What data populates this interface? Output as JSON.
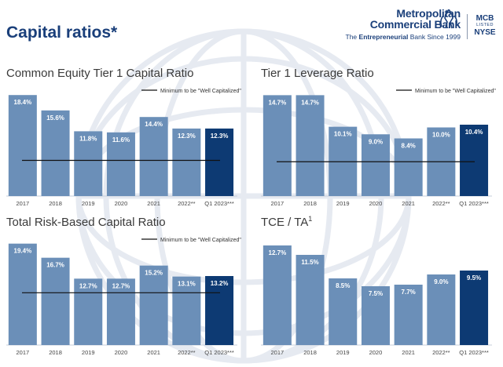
{
  "page": {
    "title": "Capital ratios*"
  },
  "logo": {
    "name_line1": "Metropolitan",
    "name_line2": "Commercial Bank",
    "tagline_pre": "The ",
    "tagline_bold": "Entrepreneurial",
    "tagline_post": " Bank Since 1999",
    "ticker": "MCB",
    "listed": "LISTED",
    "exchange": "NYSE"
  },
  "colors": {
    "bar": "#6b8fb8",
    "bar_highlight": "#0d3a73",
    "title": "#1a3f7a",
    "threshold_line": "#111111"
  },
  "chart_data": [
    {
      "type": "bar",
      "title": "Common Equity Tier 1 Capital Ratio",
      "title_sup": "",
      "categories": [
        "2017",
        "2018",
        "2019",
        "2020",
        "2021",
        "2022**",
        "Q1 2023***"
      ],
      "values": [
        18.4,
        15.6,
        11.8,
        11.6,
        14.4,
        12.3,
        12.3
      ],
      "labels": [
        "18.4%",
        "15.6%",
        "11.8%",
        "11.6%",
        "14.4%",
        "12.3%",
        "12.3%"
      ],
      "highlight_index": 6,
      "threshold": 6.5,
      "legend": "Minimum to be \"Well Capitalized\"",
      "ylim": [
        0,
        20
      ]
    },
    {
      "type": "bar",
      "title": "Tier 1 Leverage Ratio",
      "title_sup": "",
      "categories": [
        "2017",
        "2018",
        "2019",
        "2020",
        "2021",
        "2022**",
        "Q1 2023***"
      ],
      "values": [
        14.7,
        14.7,
        10.1,
        9.0,
        8.4,
        10.0,
        10.4
      ],
      "labels": [
        "14.7%",
        "14.7%",
        "10.1%",
        "9.0%",
        "8.4%",
        "10.0%",
        "10.4%"
      ],
      "highlight_index": 6,
      "threshold": 5.0,
      "legend": "Minimum to be \"Well Capitalized\"",
      "ylim": [
        0,
        16
      ]
    },
    {
      "type": "bar",
      "title": "Total Risk-Based Capital Ratio",
      "title_sup": "",
      "categories": [
        "2017",
        "2018",
        "2019",
        "2020",
        "2021",
        "2022**",
        "Q1 2023***"
      ],
      "values": [
        19.4,
        16.7,
        12.7,
        12.7,
        15.2,
        13.1,
        13.2
      ],
      "labels": [
        "19.4%",
        "16.7%",
        "12.7%",
        "12.7%",
        "15.2%",
        "13.1%",
        "13.2%"
      ],
      "highlight_index": 6,
      "threshold": 10.0,
      "legend": "Minimum to be \"Well Capitalized\"",
      "ylim": [
        0,
        21
      ]
    },
    {
      "type": "bar",
      "title": "TCE / TA",
      "title_sup": "1",
      "categories": [
        "2017",
        "2018",
        "2019",
        "2020",
        "2021",
        "2022**",
        "Q1 2023***"
      ],
      "values": [
        12.7,
        11.5,
        8.5,
        7.5,
        7.7,
        9.0,
        9.5
      ],
      "labels": [
        "12.7%",
        "11.5%",
        "8.5%",
        "7.5%",
        "7.7%",
        "9.0%",
        "9.5%"
      ],
      "highlight_index": 6,
      "ylim": [
        0,
        14
      ]
    }
  ]
}
